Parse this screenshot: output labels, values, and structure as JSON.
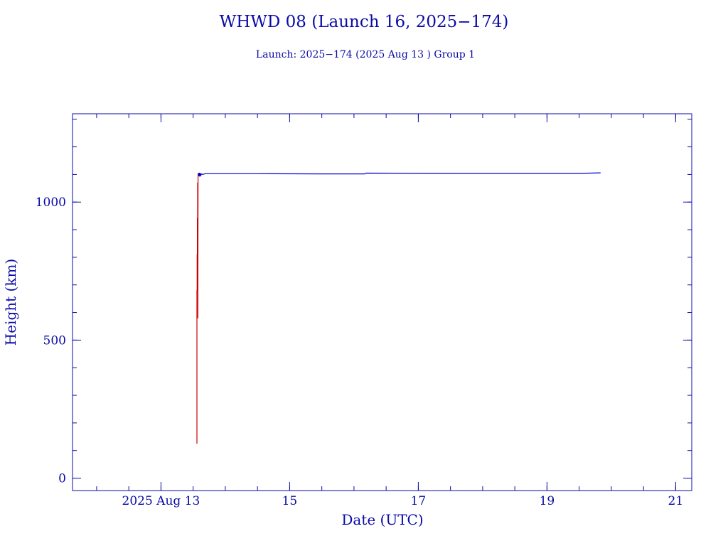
{
  "chart_data": {
    "type": "line",
    "title": "WHWD 08 (Launch 16, 2025−174)",
    "subtitle": "Launch: 2025−174  (2025 Aug 13 )  Group 1",
    "xlabel": "Date (UTC)",
    "ylabel": "Height (km)",
    "x_unit": "days",
    "xlim": [
      "2025-08-11T15:00",
      "2025-08-21T06:00"
    ],
    "ylim": [
      -45,
      1320
    ],
    "x_ticks": [
      {
        "value": "2025-08-13",
        "label": "2025 Aug 13"
      },
      {
        "value": "2025-08-15",
        "label": "15"
      },
      {
        "value": "2025-08-17",
        "label": "17"
      },
      {
        "value": "2025-08-19",
        "label": "19"
      },
      {
        "value": "2025-08-21",
        "label": "21"
      }
    ],
    "y_ticks": [
      {
        "value": 0,
        "label": "0"
      },
      {
        "value": 500,
        "label": "500"
      },
      {
        "value": 1000,
        "label": "1000"
      }
    ],
    "x_minor_step_hours": 12,
    "y_minor_step": 100,
    "grid": false,
    "legend": "none",
    "series": [
      {
        "color": "#cc0000",
        "points": [
          [
            "2025-08-13T13:25",
            125
          ],
          [
            "2025-08-13T13:25",
            680
          ],
          [
            "2025-08-13T13:30",
            680
          ],
          [
            "2025-08-13T13:30",
            810
          ],
          [
            "2025-08-13T13:35",
            810
          ],
          [
            "2025-08-13T13:35",
            940
          ],
          [
            "2025-08-13T13:40",
            940
          ],
          [
            "2025-08-13T13:40",
            1070
          ],
          [
            "2025-08-13T13:45",
            1070
          ],
          [
            "2025-08-13T13:45",
            580
          ],
          [
            "2025-08-13T13:50",
            1105
          ]
        ]
      },
      {
        "color": "#0000cc",
        "points": [
          [
            "2025-08-13T14:00",
            1105
          ],
          [
            "2025-08-13T14:10",
            1095
          ],
          [
            "2025-08-13T14:20",
            1105
          ],
          [
            "2025-08-13T14:30",
            1093
          ],
          [
            "2025-08-13T14:40",
            1104
          ],
          [
            "2025-08-13T14:50",
            1096
          ],
          [
            "2025-08-13T15:05",
            1102
          ],
          [
            "2025-08-13T15:30",
            1100
          ],
          [
            "2025-08-13T16:30",
            1103
          ],
          [
            "2025-08-14T12:00",
            1103
          ],
          [
            "2025-08-15T12:00",
            1102
          ],
          [
            "2025-08-16T04:00",
            1102
          ],
          [
            "2025-08-16T04:30",
            1105
          ],
          [
            "2025-08-17T12:00",
            1104
          ],
          [
            "2025-08-18T12:00",
            1104
          ],
          [
            "2025-08-19T08:00",
            1104
          ],
          [
            "2025-08-19T12:00",
            1104
          ],
          [
            "2025-08-19T20:00",
            1106
          ]
        ]
      }
    ]
  },
  "colors": {
    "axis": "#0a0aa8",
    "text": "#0a0aa8",
    "background": "#ffffff"
  }
}
